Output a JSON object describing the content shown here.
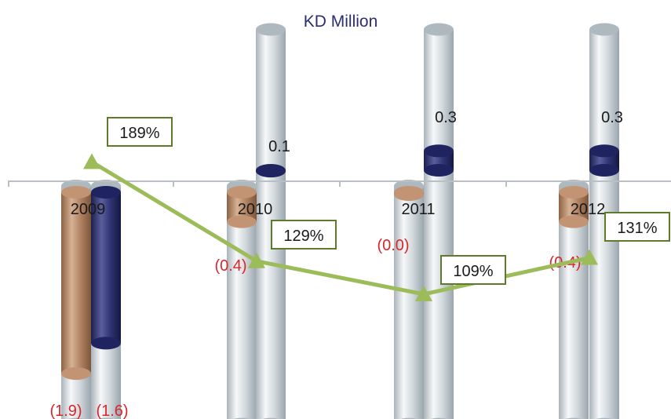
{
  "chart_data": {
    "type": "bar",
    "title": "KD Million",
    "categories": [
      "2009",
      "2010",
      "2011",
      "2012"
    ],
    "series": [
      {
        "values": [
          -1.9,
          -0.4,
          0.0,
          -0.4
        ],
        "labels": [
          "(1.9)",
          "(0.4)",
          "(0.0)",
          "(0.4)"
        ],
        "color": "#b38565"
      },
      {
        "values": [
          -1.6,
          0.1,
          0.3,
          0.3
        ],
        "labels": [
          "(1.6)",
          "0.1",
          "0.3",
          "0.3"
        ],
        "color": "#2b2f6e"
      },
      {
        "type": "line",
        "values": [
          189,
          129,
          109,
          131
        ],
        "labels": [
          "189%",
          "129%",
          "109%",
          "131%"
        ],
        "unit": "%",
        "color": "#9cbb59"
      }
    ],
    "ylim": [
      -2.4,
      1.5
    ],
    "percent_range": [
      80,
      230
    ],
    "grid": false,
    "legend": "none",
    "colors": {
      "title": "#2b2f6e",
      "negative_label": "#d9262d",
      "positive_label": "#1a1a1a",
      "cylinder": "#c9d1d7",
      "axis": "#b9bfc4",
      "line_box_border": "#5e7a2b"
    }
  }
}
